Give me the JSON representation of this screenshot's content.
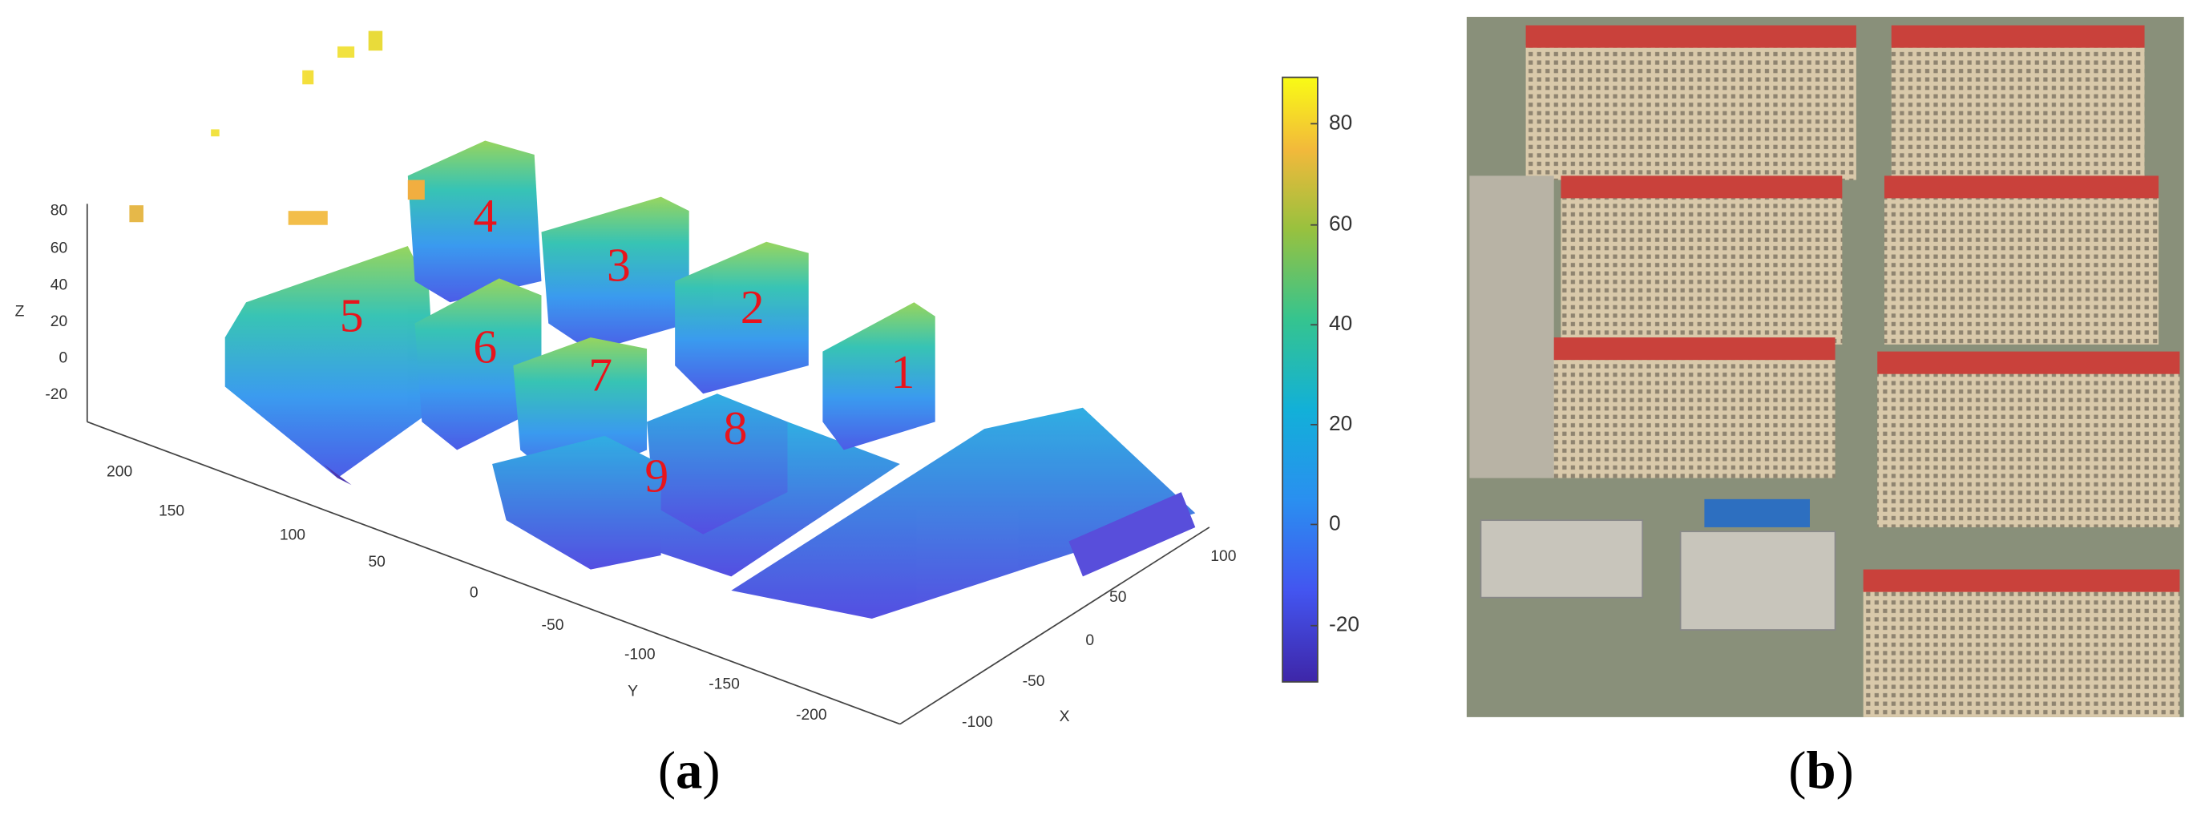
{
  "panel_a": {
    "z_label": "Z",
    "y_label": "Y",
    "x_label": "X",
    "z_ticks": [
      80,
      60,
      40,
      20,
      0,
      -20
    ],
    "y_ticks": [
      200,
      150,
      100,
      50,
      0,
      -50,
      -100,
      -150,
      -200
    ],
    "x_ticks": [
      -100,
      -50,
      0,
      50,
      100
    ],
    "colorbar_ticks": [
      80,
      60,
      40,
      20,
      0,
      -20
    ],
    "building_labels": [
      "1",
      "2",
      "3",
      "4",
      "5",
      "6",
      "7",
      "8",
      "9"
    ],
    "caption": {
      "open": "(",
      "letter": "a",
      "close": ")"
    }
  },
  "panel_b": {
    "caption": {
      "open": "(",
      "letter": "b",
      "close": ")"
    }
  }
}
